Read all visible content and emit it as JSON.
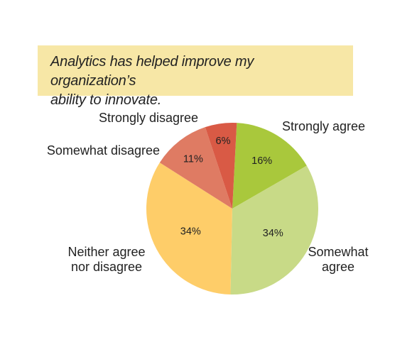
{
  "title": "Analytics has helped improve my organization’s ability to innovate.",
  "title_lines": [
    "Analytics has helped improve my organization’s",
    "ability to innovate."
  ],
  "chart_data": {
    "type": "pie",
    "start_angle_deg": 3,
    "direction": "clockwise",
    "slices": [
      {
        "label": "Strongly agree",
        "label_lines": [
          "Strongly agree"
        ],
        "value": 16,
        "value_label": "16%",
        "color": "#a9c83c"
      },
      {
        "label": "Somewhat agree",
        "label_lines": [
          "Somewhat",
          "agree"
        ],
        "value": 34,
        "value_label": "34%",
        "color": "#c8da87"
      },
      {
        "label": "Neither agree nor disagree",
        "label_lines": [
          "Neither agree",
          "nor disagree"
        ],
        "value": 34,
        "value_label": "34%",
        "color": "#fecd69"
      },
      {
        "label": "Somewhat disagree",
        "label_lines": [
          "Somewhat disagree"
        ],
        "value": 11,
        "value_label": "11%",
        "color": "#df7b63"
      },
      {
        "label": "Strongly disagree",
        "label_lines": [
          "Strongly disagree"
        ],
        "value": 6,
        "value_label": "6%",
        "color": "#d95a45"
      }
    ]
  }
}
